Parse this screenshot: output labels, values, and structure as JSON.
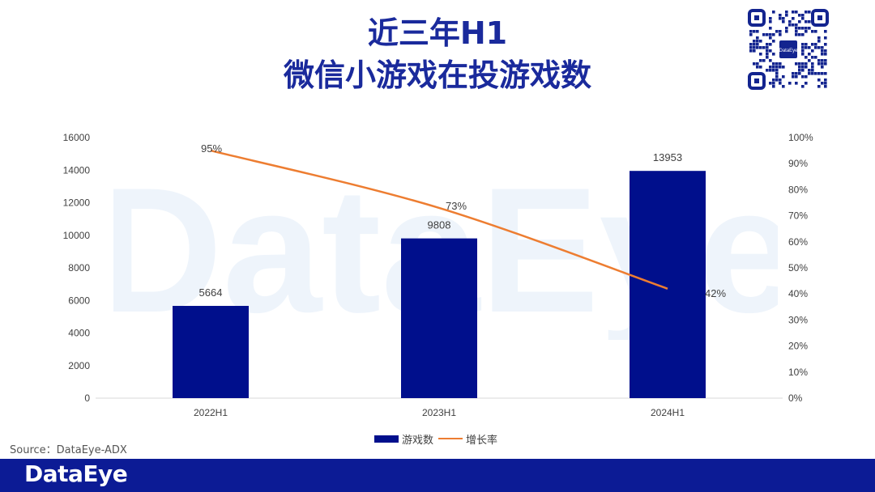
{
  "title": {
    "line1": "近三年H1",
    "line2": "微信小游戏在投游戏数"
  },
  "watermark_text": "DataEye",
  "source": "Source：DataEye-ADX",
  "footer": {
    "logo": "DataEye"
  },
  "colors": {
    "bar": "#000f8c",
    "line": "#ed7d31",
    "title": "#1a2a9c",
    "footer": "#0c1b95"
  },
  "icons": {
    "qr": "qr-code-icon"
  },
  "legend": {
    "bars": "游戏数",
    "line": "增长率"
  },
  "chart_data": {
    "type": "bar",
    "categories": [
      "2022H1",
      "2023H1",
      "2024H1"
    ],
    "series": [
      {
        "name": "游戏数",
        "type": "bar",
        "axis": "left",
        "values": [
          5664,
          9808,
          13953
        ],
        "labels": [
          "5664",
          "9808",
          "13953"
        ]
      },
      {
        "name": "增长率",
        "type": "line",
        "axis": "right",
        "values": [
          95,
          73,
          42
        ],
        "labels": [
          "95%",
          "73%",
          "42%"
        ]
      }
    ],
    "y_left": {
      "min": 0,
      "max": 16000,
      "step": 2000,
      "ticks": [
        "0",
        "2000",
        "4000",
        "6000",
        "8000",
        "10000",
        "12000",
        "14000",
        "16000"
      ]
    },
    "y_right": {
      "min": 0,
      "max": 100,
      "step": 10,
      "ticks": [
        "0%",
        "10%",
        "20%",
        "30%",
        "40%",
        "50%",
        "60%",
        "70%",
        "80%",
        "90%",
        "100%"
      ]
    },
    "grid": false,
    "legend_position": "bottom"
  }
}
